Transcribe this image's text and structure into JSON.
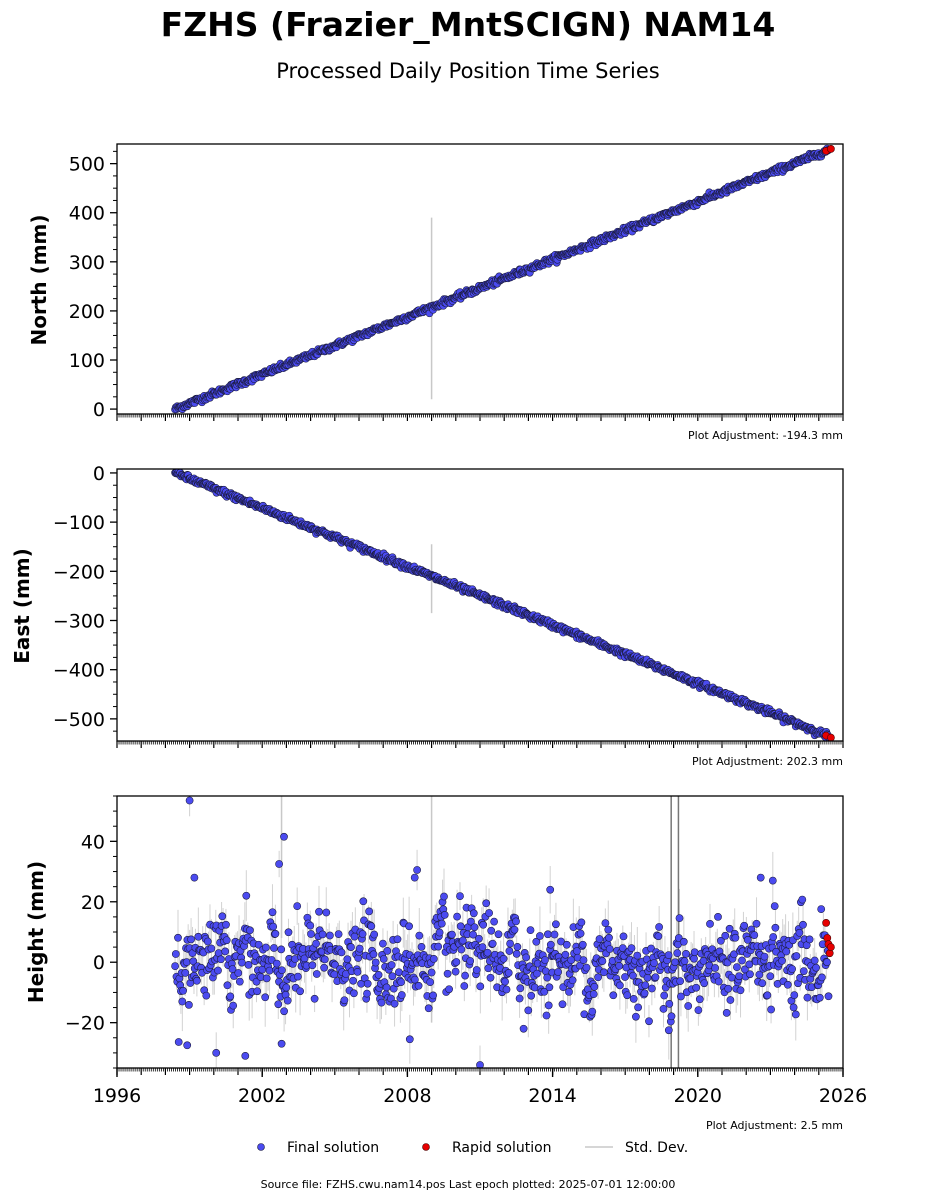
{
  "title": "FZHS (Frazier_MntSCIGN) NAM14",
  "subtitle": "Processed Daily Position Time Series",
  "colors": {
    "final": "#4b4bf0",
    "final_edge": "#1a1a3a",
    "rapid": "#e60000",
    "stddev": "#c8c8c8"
  },
  "legend": {
    "final": "Final solution",
    "rapid": "Rapid solution",
    "stddev": "Std. Dev."
  },
  "footer": "Source file: FZHS.cwu.nam14.pos  Last epoch plotted: 2025-07-01 12:00:00",
  "chart_data": [
    {
      "type": "scatter",
      "ylabel": "North (mm)",
      "adjustment": "Plot Adjustment: -194.3 mm",
      "xlim": [
        1996,
        2026
      ],
      "ylim": [
        -10,
        540
      ],
      "yticks": [
        0,
        100,
        200,
        300,
        400,
        500
      ],
      "ytick_labels": [
        "0",
        "100",
        "200",
        "300",
        "400",
        "500"
      ],
      "series": [
        {
          "name": "Final solution",
          "trend": {
            "x": [
              1998.4,
              2025.4
            ],
            "y": [
              0,
              528
            ]
          },
          "noise_mm": 3
        },
        {
          "name": "Rapid solution",
          "x": [
            2025.3,
            2025.5
          ],
          "y": [
            526,
            530
          ]
        }
      ],
      "stddev_outliers": [
        {
          "x": 2009.0,
          "y_low": 20,
          "y_high": 390
        }
      ]
    },
    {
      "type": "scatter",
      "ylabel": "East (mm)",
      "adjustment": "Plot Adjustment: 202.3 mm",
      "xlim": [
        1996,
        2026
      ],
      "ylim": [
        -545,
        8
      ],
      "yticks": [
        0,
        -100,
        -200,
        -300,
        -400,
        -500
      ],
      "ytick_labels": [
        "0",
        "−100",
        "−200",
        "−300",
        "−400",
        "−500"
      ],
      "series": [
        {
          "name": "Final solution",
          "trend": {
            "x": [
              1998.4,
              2025.4
            ],
            "y": [
              0,
              -535
            ]
          },
          "noise_mm": 3
        },
        {
          "name": "Rapid solution",
          "x": [
            2025.3,
            2025.5
          ],
          "y": [
            -534,
            -538
          ]
        }
      ],
      "stddev_outliers": [
        {
          "x": 2009.0,
          "y_low": -285,
          "y_high": -145
        }
      ]
    },
    {
      "type": "scatter",
      "ylabel": "Height (mm)",
      "adjustment": "Plot Adjustment: 2.5 mm",
      "xlim": [
        1996,
        2026
      ],
      "ylim": [
        -35,
        55
      ],
      "yticks": [
        -20,
        0,
        20,
        40
      ],
      "ytick_labels": [
        "−20",
        "0",
        "20",
        "40"
      ],
      "xticks": [
        1996,
        2002,
        2008,
        2014,
        2020,
        2026
      ],
      "xtick_labels": [
        "1996",
        "2002",
        "2008",
        "2014",
        "2020",
        "2026"
      ],
      "series": [
        {
          "name": "Final solution",
          "range": [
            1998.4,
            2025.4
          ],
          "level_mm": 0,
          "noise_mm": 6
        },
        {
          "name": "Rapid solution",
          "x": [
            2025.3,
            2025.35,
            2025.4,
            2025.45,
            2025.5
          ],
          "y": [
            13,
            8,
            6,
            3,
            5
          ]
        }
      ],
      "outliers": [
        {
          "x": 1999.0,
          "y": 53.5
        },
        {
          "x": 2002.9,
          "y": 41.5
        },
        {
          "x": 2002.7,
          "y": 32.5
        },
        {
          "x": 1999.2,
          "y": 28
        },
        {
          "x": 2008.4,
          "y": 30.5
        },
        {
          "x": 2008.3,
          "y": 28
        },
        {
          "x": 2013.9,
          "y": 24
        },
        {
          "x": 2022.6,
          "y": 28
        },
        {
          "x": 2023.1,
          "y": 27
        },
        {
          "x": 1998.9,
          "y": -27.5
        },
        {
          "x": 2000.1,
          "y": -30
        },
        {
          "x": 2001.3,
          "y": -31
        },
        {
          "x": 2011.0,
          "y": -34
        },
        {
          "x": 2012.8,
          "y": -22
        },
        {
          "x": 2018.8,
          "y": -22.5
        },
        {
          "x": 2002.8,
          "y": -27
        },
        {
          "x": 2008.1,
          "y": -25.5
        }
      ],
      "stddev_outliers": [
        {
          "x": 2002.8,
          "y_low": 8,
          "y_high": 55
        },
        {
          "x": 2009.0,
          "y_low": -20,
          "y_high": 55
        },
        {
          "x": 2018.9,
          "y_low": -35,
          "y_high": 55
        },
        {
          "x": 2019.2,
          "y_low": -35,
          "y_high": 55
        }
      ]
    }
  ]
}
